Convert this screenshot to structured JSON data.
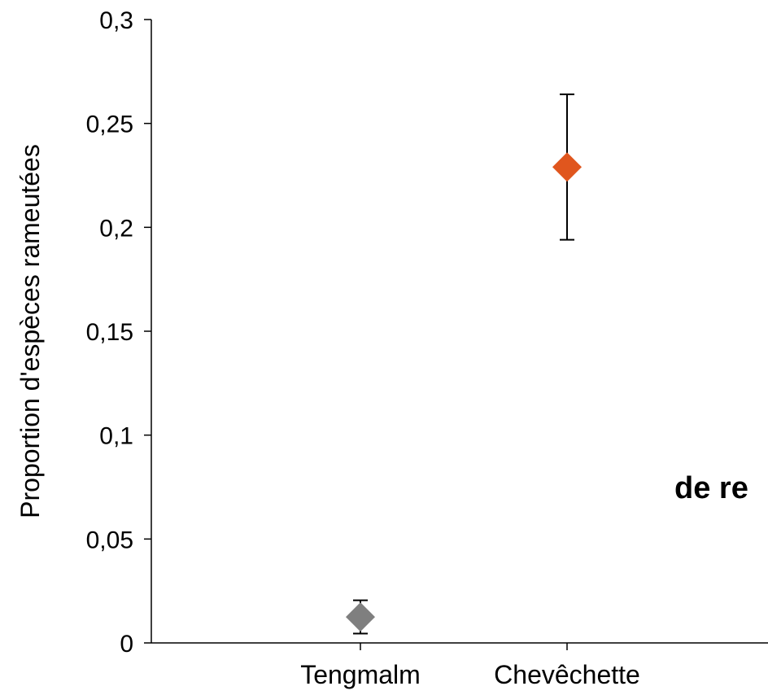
{
  "chart_data": {
    "type": "scatter",
    "title": "",
    "xlabel": "",
    "ylabel": "Proportion  d'espèces rameutées",
    "categories": [
      "Tengmalm",
      "Chevêchette"
    ],
    "ylim": [
      0,
      0.3
    ],
    "yticks": [
      "0",
      "0,05",
      "0,1",
      "0,15",
      "0,2",
      "0,25",
      "0,3"
    ],
    "ytick_values": [
      0,
      0.05,
      0.1,
      0.15,
      0.2,
      0.25,
      0.3
    ],
    "grid": false,
    "legend": "none",
    "points": [
      {
        "category": "Tengmalm",
        "value": 0.0125,
        "err_low": 0.0045,
        "err_high": 0.0205,
        "color": "#7f7f7f"
      },
      {
        "category": "Chevêchette",
        "value": 0.229,
        "err_low": 0.194,
        "err_high": 0.264,
        "color": "#e0561e"
      }
    ],
    "annotation": "de re"
  }
}
